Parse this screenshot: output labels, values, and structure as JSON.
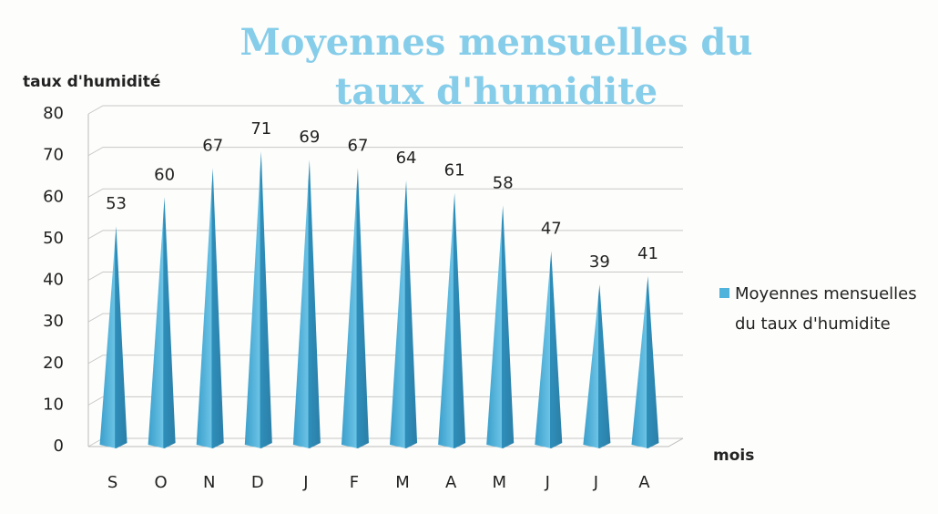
{
  "chart_data": {
    "type": "bar",
    "title": "Moyennes mensuelles du taux d'humidite",
    "y_label": "taux d'humidité",
    "x_label": "mois",
    "categories": [
      "S",
      "O",
      "N",
      "D",
      "J",
      "F",
      "M",
      "A",
      "M",
      "J",
      "J",
      "A"
    ],
    "series": [
      {
        "name": "Moyennes mensuelles du taux d'humidite",
        "color": "#4fb3dc",
        "values": [
          53,
          60,
          67,
          71,
          69,
          67,
          64,
          61,
          58,
          47,
          39,
          41
        ]
      }
    ],
    "ylim": [
      0,
      80
    ],
    "yticks": [
      0,
      10,
      20,
      30,
      40,
      50,
      60,
      70,
      80
    ],
    "grid": true,
    "legend": "right"
  }
}
